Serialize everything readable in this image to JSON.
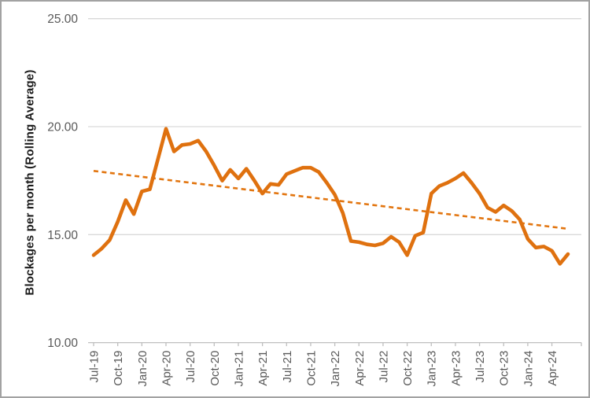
{
  "chart_data": {
    "type": "line",
    "title": "",
    "xlabel": "",
    "ylabel": "Blockages per month (Rolling Average)",
    "ylim": [
      10,
      25
    ],
    "yticks": [
      10,
      15,
      20,
      25
    ],
    "ytick_labels": [
      "10.00",
      "15.00",
      "20.00",
      "25.00"
    ],
    "grid": "horizontal-gridlines-at-15-20-25",
    "legend": "none",
    "x_label_interval_months": 3,
    "x": [
      "Jul-19",
      "Aug-19",
      "Sep-19",
      "Oct-19",
      "Nov-19",
      "Dec-19",
      "Jan-20",
      "Feb-20",
      "Mar-20",
      "Apr-20",
      "May-20",
      "Jun-20",
      "Jul-20",
      "Aug-20",
      "Sep-20",
      "Oct-20",
      "Nov-20",
      "Dec-20",
      "Jan-21",
      "Feb-21",
      "Mar-21",
      "Apr-21",
      "May-21",
      "Jun-21",
      "Jul-21",
      "Aug-21",
      "Sep-21",
      "Oct-21",
      "Nov-21",
      "Dec-21",
      "Jan-22",
      "Feb-22",
      "Mar-22",
      "Apr-22",
      "May-22",
      "Jun-22",
      "Jul-22",
      "Aug-22",
      "Sep-22",
      "Oct-22",
      "Nov-22",
      "Dec-22",
      "Jan-23",
      "Feb-23",
      "Mar-23",
      "Apr-23",
      "May-23",
      "Jun-23",
      "Jul-23",
      "Aug-23",
      "Sep-23",
      "Oct-23",
      "Nov-23",
      "Dec-23",
      "Jan-24",
      "Feb-24",
      "Mar-24",
      "Apr-24",
      "May-24",
      "Jun-24"
    ],
    "x_labels_shown": [
      "Jul-19",
      "Oct-19",
      "Jan-20",
      "Apr-20",
      "Jul-20",
      "Oct-20",
      "Jan-21",
      "Apr-21",
      "Jul-21",
      "Oct-21",
      "Jan-22",
      "Apr-22",
      "Jul-22",
      "Oct-22",
      "Jan-23",
      "Apr-23",
      "Jul-23",
      "Oct-23",
      "Jan-24",
      "Apr-24"
    ],
    "series": [
      {
        "name": "Blockages per month rolling average",
        "color": "#DF710F",
        "line_width": 4.6,
        "values": [
          14.05,
          14.35,
          14.75,
          15.6,
          16.6,
          15.95,
          17.0,
          17.1,
          18.5,
          19.9,
          18.85,
          19.15,
          19.2,
          19.35,
          18.85,
          18.2,
          17.5,
          18.0,
          17.6,
          18.05,
          17.5,
          16.9,
          17.35,
          17.3,
          17.8,
          17.95,
          18.1,
          18.1,
          17.9,
          17.4,
          16.85,
          16.0,
          14.7,
          14.65,
          14.55,
          14.5,
          14.6,
          14.9,
          14.65,
          14.05,
          14.95,
          15.1,
          16.9,
          17.25,
          17.4,
          17.6,
          17.85,
          17.4,
          16.9,
          16.25,
          16.05,
          16.35,
          16.1,
          15.7,
          14.8,
          14.4,
          14.45,
          14.25,
          13.65,
          14.1
        ]
      }
    ],
    "trendline": {
      "style": "dashed",
      "color": "#E2750F",
      "line_width": 2.6,
      "start_value": 17.95,
      "end_value": 15.27
    }
  },
  "style": {
    "gridline_color": "#D9D9D9",
    "axis_line_color": "#BFBFBF",
    "tick_label_color": "#595959",
    "axis_title_color": "#1a1a1a",
    "background": "#ffffff"
  }
}
